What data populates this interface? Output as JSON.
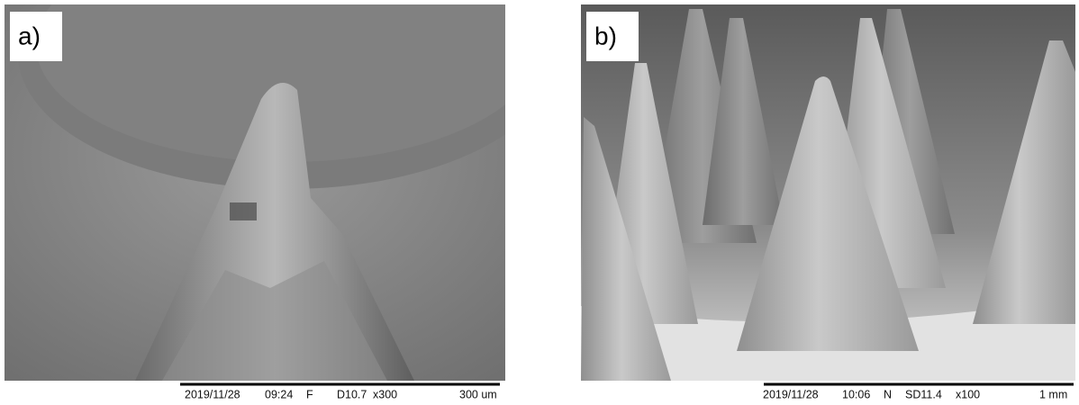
{
  "panels": [
    {
      "label": "a)",
      "info": {
        "date": "2019/11/28",
        "time": "09:24",
        "mode": "F",
        "distance": "D10.7",
        "magnification": "x300",
        "scale": "300 um"
      }
    },
    {
      "label": "b)",
      "info": {
        "date": "2019/11/28",
        "time": "10:06",
        "mode": "N",
        "distance": "SD11.4",
        "magnification": "x100",
        "scale": "1 mm"
      }
    }
  ]
}
